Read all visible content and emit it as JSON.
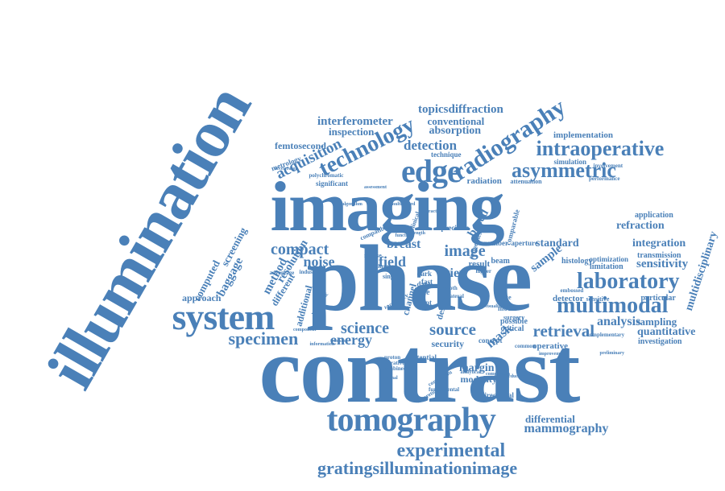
{
  "cloud": {
    "color": "#4a80b8",
    "words": [
      {
        "id": "illumination",
        "text": "illumination"
      },
      {
        "id": "imaging",
        "text": "imaging"
      },
      {
        "id": "phase",
        "text": "phase"
      },
      {
        "id": "contrast",
        "text": "contrast"
      },
      {
        "id": "system",
        "text": "system"
      },
      {
        "id": "tomography",
        "text": "tomography"
      },
      {
        "id": "edge",
        "text": "edge"
      },
      {
        "id": "radiography",
        "text": "radiography"
      },
      {
        "id": "intraoperative",
        "text": "intraoperative"
      },
      {
        "id": "asymmetric",
        "text": "asymmetric"
      },
      {
        "id": "laboratory",
        "text": "laboratory"
      },
      {
        "id": "multimodal",
        "text": "multimodal"
      },
      {
        "id": "technology",
        "text": "technology"
      },
      {
        "id": "experimental",
        "text": "experimental"
      },
      {
        "id": "gratingsilluminationimage",
        "text": "gratingsilluminationimage"
      },
      {
        "id": "specimen",
        "text": "specimen"
      },
      {
        "id": "retrieval",
        "text": "retrieval"
      },
      {
        "id": "source",
        "text": "source"
      },
      {
        "id": "science",
        "text": "science"
      },
      {
        "id": "compact",
        "text": "compact"
      },
      {
        "id": "image",
        "text": "image"
      },
      {
        "id": "acquisition",
        "text": "acquisition"
      },
      {
        "id": "detection",
        "text": "detection"
      },
      {
        "id": "topicsdiffraction",
        "text": "topicsdiffraction"
      },
      {
        "id": "interferometer",
        "text": "interferometer"
      },
      {
        "id": "conventional",
        "text": "conventional"
      },
      {
        "id": "absorption",
        "text": "absorption"
      },
      {
        "id": "inspection",
        "text": "inspection"
      },
      {
        "id": "femtosecond",
        "text": "femtosecond"
      },
      {
        "id": "implementation",
        "text": "implementation"
      },
      {
        "id": "refraction",
        "text": "refraction"
      },
      {
        "id": "integration",
        "text": "integration"
      },
      {
        "id": "sensitivity",
        "text": "sensitivity"
      },
      {
        "id": "analysis",
        "text": "analysis"
      },
      {
        "id": "sampling",
        "text": "sampling"
      },
      {
        "id": "quantitative",
        "text": "quantitative"
      },
      {
        "id": "multidisciplinary",
        "text": "multidisciplinary"
      },
      {
        "id": "mammography",
        "text": "mammography"
      },
      {
        "id": "differential",
        "text": "differential"
      },
      {
        "id": "noise",
        "text": "noise"
      },
      {
        "id": "field",
        "text": "field"
      },
      {
        "id": "breast",
        "text": "breast"
      },
      {
        "id": "view",
        "text": "view"
      },
      {
        "id": "standard",
        "text": "standard"
      },
      {
        "id": "energy",
        "text": "energy"
      },
      {
        "id": "security",
        "text": "security"
      },
      {
        "id": "mask",
        "text": "mask"
      },
      {
        "id": "sample",
        "text": "sample"
      },
      {
        "id": "margin",
        "text": "margin"
      },
      {
        "id": "modality",
        "text": "modality"
      },
      {
        "id": "method",
        "text": "method"
      },
      {
        "id": "resolution",
        "text": "resolution"
      },
      {
        "id": "different",
        "text": "different"
      },
      {
        "id": "baggage",
        "text": "baggage"
      },
      {
        "id": "screening",
        "text": "screening"
      },
      {
        "id": "computed",
        "text": "computed"
      },
      {
        "id": "approach",
        "text": "approach"
      },
      {
        "id": "application",
        "text": "application"
      },
      {
        "id": "transmission",
        "text": "transmission"
      },
      {
        "id": "particular",
        "text": "particular"
      },
      {
        "id": "investigation",
        "text": "investigation"
      },
      {
        "id": "detector",
        "text": "detector"
      },
      {
        "id": "histology",
        "text": "histology"
      },
      {
        "id": "limitation",
        "text": "limitation"
      },
      {
        "id": "optimization",
        "text": "optimization"
      },
      {
        "id": "simulation",
        "text": "simulation"
      },
      {
        "id": "radiation",
        "text": "radiation"
      },
      {
        "id": "technique",
        "text": "technique"
      },
      {
        "id": "metrology",
        "text": "metrology"
      },
      {
        "id": "significant",
        "text": "significant"
      },
      {
        "id": "operative",
        "text": "operative"
      },
      {
        "id": "directional",
        "text": "directional"
      },
      {
        "id": "based",
        "text": "based"
      },
      {
        "id": "additional",
        "text": "additional"
      },
      {
        "id": "channel",
        "text": "channel"
      },
      {
        "id": "design",
        "text": "design"
      },
      {
        "id": "result",
        "text": "result"
      },
      {
        "id": "beam",
        "text": "beam"
      },
      {
        "id": "model",
        "text": "model"
      },
      {
        "id": "possible",
        "text": "possible"
      },
      {
        "id": "optical",
        "text": "optical"
      },
      {
        "id": "concept",
        "text": "concept"
      },
      {
        "id": "potential",
        "text": "potential"
      },
      {
        "id": "data",
        "text": "data"
      },
      {
        "id": "time",
        "text": "time"
      },
      {
        "id": "fast",
        "text": "fast"
      },
      {
        "id": "dark",
        "text": "dark"
      },
      {
        "id": "precision",
        "text": "precision"
      },
      {
        "id": "compatible",
        "text": "compatible"
      },
      {
        "id": "number",
        "text": "number"
      },
      {
        "id": "aperture",
        "text": "aperture"
      },
      {
        "id": "attenuation",
        "text": "attenuation"
      },
      {
        "id": "performance",
        "text": "performance"
      },
      {
        "id": "involvement",
        "text": "involvement"
      },
      {
        "id": "sensitive",
        "text": "sensitive"
      },
      {
        "id": "complementary",
        "text": "complementary"
      },
      {
        "id": "polychromatic",
        "text": "polychromatic"
      },
      {
        "id": "advantage",
        "text": "advantage"
      },
      {
        "id": "industrial",
        "text": "industrial"
      },
      {
        "id": "single",
        "text": "single"
      },
      {
        "id": "threat",
        "text": "threat"
      },
      {
        "id": "volumetric",
        "text": "volumetric"
      },
      {
        "id": "properties",
        "text": "properties"
      },
      {
        "id": "comparable",
        "text": "comparable"
      },
      {
        "id": "clinical",
        "text": "clinical"
      },
      {
        "id": "common",
        "text": "common"
      },
      {
        "id": "surgery",
        "text": "surgery"
      },
      {
        "id": "tissue",
        "text": "tissue"
      },
      {
        "id": "mouse",
        "text": "mouse"
      },
      {
        "id": "point",
        "text": "point"
      },
      {
        "id": "accuracy",
        "text": "accuracy"
      },
      {
        "id": "fundamental",
        "text": "fundamental"
      },
      {
        "id": "correlation",
        "text": "correlation"
      },
      {
        "id": "theoretical",
        "text": "theoretical"
      },
      {
        "id": "proton",
        "text": "proton"
      },
      {
        "id": "iterative",
        "text": "iterative"
      },
      {
        "id": "combined",
        "text": "combined"
      },
      {
        "id": "embossed",
        "text": "embossed"
      },
      {
        "id": "higher",
        "text": "higher"
      },
      {
        "id": "lateral",
        "text": "lateral"
      },
      {
        "id": "smooth",
        "text": "smooth"
      },
      {
        "id": "virtual",
        "text": "virtual"
      },
      {
        "id": "reduction",
        "text": "reduction"
      },
      {
        "id": "analytical",
        "text": "analytical"
      },
      {
        "id": "comparison",
        "text": "comparison"
      },
      {
        "id": "component",
        "text": "component"
      },
      {
        "id": "information",
        "text": "information"
      },
      {
        "id": "tracking",
        "text": "tracking"
      },
      {
        "id": "preliminary",
        "text": "preliminary"
      },
      {
        "id": "animal",
        "text": "animal"
      },
      {
        "id": "assessment",
        "text": "assessment"
      },
      {
        "id": "improvement",
        "text": "improvement"
      },
      {
        "id": "algorithm",
        "text": "algorithm"
      },
      {
        "id": "accelerator",
        "text": "accelerator"
      },
      {
        "id": "visualization",
        "text": "visualization"
      },
      {
        "id": "multiplexed",
        "text": "multiplexed"
      },
      {
        "id": "practical",
        "text": "practical"
      },
      {
        "id": "function",
        "text": "function"
      },
      {
        "id": "length",
        "text": "length"
      }
    ]
  }
}
